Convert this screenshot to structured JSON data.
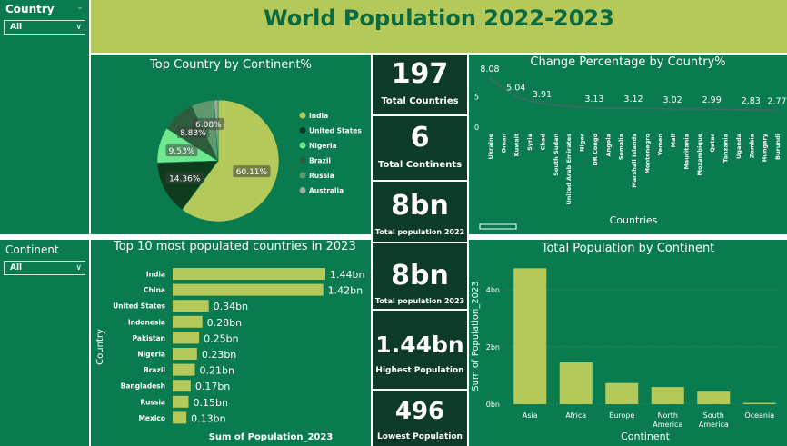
{
  "header": {
    "title": "World Population 2022-2023"
  },
  "slicers": {
    "country": {
      "title": "Country",
      "value": "All"
    },
    "continent": {
      "title": "Continent",
      "value": "All"
    }
  },
  "kpis": [
    {
      "value": "197",
      "label": "Total Countries"
    },
    {
      "value": "6",
      "label": "Total Continents"
    },
    {
      "value": "8bn",
      "label": "Total population 2022"
    },
    {
      "value": "8bn",
      "label": "Total population 2023"
    },
    {
      "value": "1.44bn",
      "label": "Highest Population"
    },
    {
      "value": "496",
      "label": "Lowest Population"
    }
  ],
  "chart_data": [
    {
      "type": "pie",
      "title": "Top Country by Continent%",
      "categories": [
        "India",
        "United States",
        "Nigeria",
        "Brazil",
        "Russia",
        "Australia"
      ],
      "values": [
        60.11,
        14.36,
        9.53,
        8.83,
        6.08,
        1.09
      ],
      "labels": [
        "60.11%",
        "14.36%",
        "9.53%",
        "8.83%",
        "6.08%",
        ""
      ],
      "colors": [
        "#b5c95a",
        "#0d3b1c",
        "#6fe88f",
        "#2e5c3c",
        "#5e9a6e",
        "#a0a8a2"
      ],
      "legend": "right"
    },
    {
      "type": "line",
      "title": "Change Percentage by Country%",
      "xlabel": "Countries",
      "categories": [
        "Ukraine",
        "Oman",
        "Kuwait",
        "Syria",
        "Chad",
        "South Sudan",
        "United Arab Emirates",
        "Niger",
        "DR Congo",
        "Angola",
        "Somalia",
        "Marshall Islands",
        "Montenegro",
        "Yemen",
        "Mali",
        "Mauritania",
        "Mozambique",
        "Qatar",
        "Tanzania",
        "Uganda",
        "Zambia",
        "Hungary",
        "Burundi"
      ],
      "values": [
        8.08,
        6.5,
        5.04,
        4.4,
        3.91,
        3.6,
        3.45,
        3.3,
        3.13,
        3.12,
        3.1,
        3.12,
        3.08,
        3.05,
        3.02,
        3.0,
        3.0,
        2.99,
        2.95,
        2.9,
        2.83,
        2.8,
        2.77
      ],
      "data_labels": {
        "0": "8.08",
        "2": "5.04",
        "4": "3.91",
        "8": "3.13",
        "11": "3.12",
        "14": "3.02",
        "17": "2.99",
        "20": "2.83",
        "22": "2.77"
      },
      "yticks": [
        "0",
        "5"
      ],
      "ylim": [
        0,
        9
      ]
    },
    {
      "type": "bar",
      "orientation": "horizontal",
      "title": "Top 10 most populated countries in 2023",
      "xlabel": "Sum of Population_2023",
      "ylabel": "Country",
      "categories": [
        "India",
        "China",
        "United States",
        "Indonesia",
        "Pakistan",
        "Nigeria",
        "Brazil",
        "Bangladesh",
        "Russia",
        "Mexico"
      ],
      "values": [
        1.44,
        1.42,
        0.34,
        0.28,
        0.25,
        0.23,
        0.21,
        0.17,
        0.15,
        0.13
      ],
      "labels": [
        "1.44bn",
        "1.42bn",
        "0.34bn",
        "0.28bn",
        "0.25bn",
        "0.23bn",
        "0.21bn",
        "0.17bn",
        "0.15bn",
        "0.13bn"
      ],
      "color": "#b5c95a"
    },
    {
      "type": "bar",
      "title": "Total Population by Continent",
      "xlabel": "Continent",
      "ylabel": "Sum of Population_2023",
      "categories": [
        "Asia",
        "Africa",
        "Europe",
        "North America",
        "South America",
        "Oceania"
      ],
      "values": [
        4.75,
        1.46,
        0.74,
        0.6,
        0.44,
        0.045
      ],
      "yticks": [
        "0bn",
        "2bn",
        "4bn"
      ],
      "ylim": [
        0,
        5.3
      ],
      "color": "#b5c95a"
    }
  ]
}
